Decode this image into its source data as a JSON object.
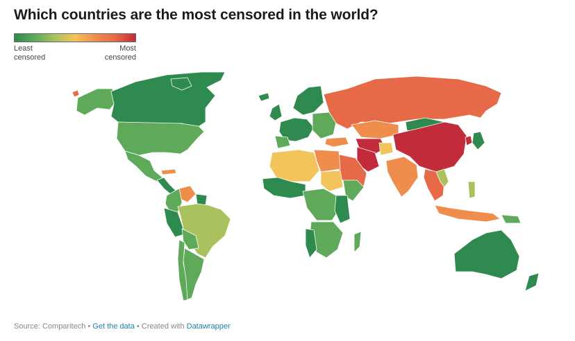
{
  "title": "Which countries are the most censored in the world?",
  "legend": {
    "low_line1": "Least",
    "low_line2": "censored",
    "high_line1": "Most",
    "high_line2": "censored",
    "colors": [
      "#2e8a4e",
      "#5ea95a",
      "#a9c25e",
      "#f3c35c",
      "#ef8d4d",
      "#e66a47",
      "#c22b3a"
    ]
  },
  "map": {
    "color_scale": {
      "least": "#2e8a4e",
      "low": "#5ea95a",
      "mid_low": "#a9c25e",
      "mid": "#f3c35c",
      "mid_high": "#ef8d4d",
      "high": "#e66a47",
      "most": "#c22b3a"
    },
    "ocean": "#ffffff",
    "border": "#ffffff"
  },
  "footer": {
    "source": "Source: Comparitech",
    "sep1": " • ",
    "data_link": "Get the data",
    "sep2": " • Created with ",
    "tool_link": "Datawrapper"
  }
}
